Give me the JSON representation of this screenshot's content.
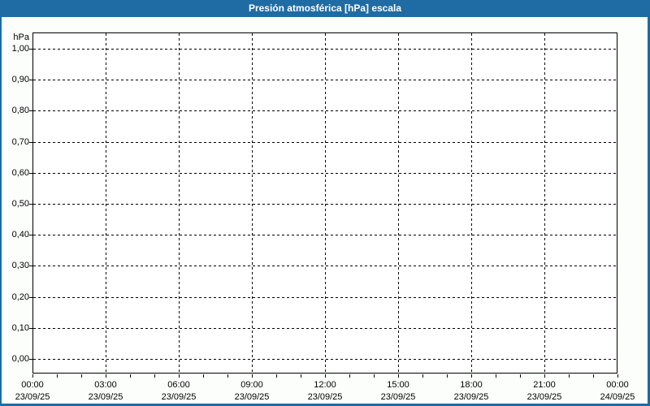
{
  "window": {
    "background": "#FCFEFC",
    "frame_color": "#1E6CA3"
  },
  "title_bar": {
    "label": "Presión atmosférica [hPa] escala",
    "background": "#1E6CA3",
    "text_color": "#FFFFFF"
  },
  "chart_data": {
    "type": "line",
    "title": "Presión atmosférica [hPa] escala",
    "ylabel": "hPa",
    "xlabel": "",
    "ylim": [
      0.0,
      1.0
    ],
    "grid": "dashed",
    "grid_color": "#000000",
    "legend": "none",
    "plot_background": "#FFFFFF",
    "y_ticks": [
      {
        "value": 1.0,
        "label": "1,00"
      },
      {
        "value": 0.9,
        "label": "0,90"
      },
      {
        "value": 0.8,
        "label": "0,80"
      },
      {
        "value": 0.7,
        "label": "0,70"
      },
      {
        "value": 0.6,
        "label": "0,60"
      },
      {
        "value": 0.5,
        "label": "0,50"
      },
      {
        "value": 0.4,
        "label": "0,40"
      },
      {
        "value": 0.3,
        "label": "0,30"
      },
      {
        "value": 0.2,
        "label": "0,20"
      },
      {
        "value": 0.1,
        "label": "0,10"
      },
      {
        "value": 0.0,
        "label": "0,00"
      }
    ],
    "x_ticks": [
      {
        "time": "00:00",
        "date": "23/09/25"
      },
      {
        "time": "03:00",
        "date": "23/09/25"
      },
      {
        "time": "06:00",
        "date": "23/09/25"
      },
      {
        "time": "09:00",
        "date": "23/09/25"
      },
      {
        "time": "12:00",
        "date": "23/09/25"
      },
      {
        "time": "15:00",
        "date": "23/09/25"
      },
      {
        "time": "18:00",
        "date": "23/09/25"
      },
      {
        "time": "21:00",
        "date": "23/09/25"
      },
      {
        "time": "00:00",
        "date": "24/09/25"
      }
    ],
    "x_minor_ticks_per_interval": 3,
    "series": []
  }
}
